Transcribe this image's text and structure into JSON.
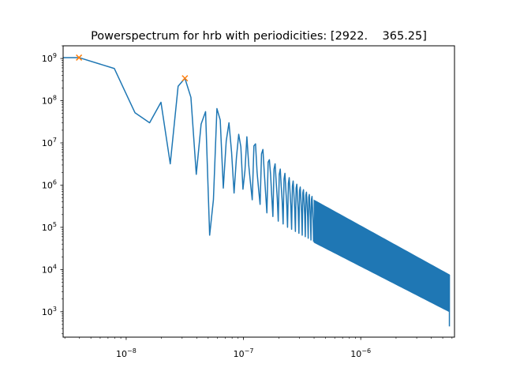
{
  "chart_data": {
    "type": "line",
    "title": "Powerspectrum for hrb with periodicities: [2922.    365.25]",
    "xlabel": "",
    "ylabel": "",
    "x_scale": "log",
    "y_scale": "log",
    "xlim": [
      2.9e-09,
      6.3e-06
    ],
    "ylim": [
      250,
      2000000000.0
    ],
    "x_ticks": [
      {
        "value": 1e-08,
        "base": "10",
        "exp": "−8"
      },
      {
        "value": 1e-07,
        "base": "10",
        "exp": "−7"
      },
      {
        "value": 1e-06,
        "base": "10",
        "exp": "−6"
      }
    ],
    "y_ticks": [
      {
        "value": 1000.0,
        "base": "10",
        "exp": "3"
      },
      {
        "value": 10000.0,
        "base": "10",
        "exp": "4"
      },
      {
        "value": 100000.0,
        "base": "10",
        "exp": "5"
      },
      {
        "value": 1000000.0,
        "base": "10",
        "exp": "6"
      },
      {
        "value": 10000000.0,
        "base": "10",
        "exp": "7"
      },
      {
        "value": 100000000.0,
        "base": "10",
        "exp": "8"
      },
      {
        "value": 1000000000.0,
        "base": "10",
        "exp": "9"
      }
    ],
    "grid": false,
    "legend": "none",
    "series": [
      {
        "color": "#1f77b4",
        "x": [
          2.9e-09,
          3.96e-09,
          7.92e-09,
          1.188e-08,
          1.584e-08,
          1.98e-08,
          2.376e-08,
          2.772e-08,
          3.168e-08,
          3.564e-08,
          3.96e-08,
          4.356e-08,
          4.752e-08,
          5.148e-08,
          5.544e-08,
          5.94e-08,
          6.336e-08,
          6.732e-08,
          7.128e-08,
          7.524e-08,
          7.92e-08,
          8.316e-08,
          8.712e-08,
          9.108e-08,
          9.504e-08,
          9.9e-08,
          1.0296e-07,
          1.0692e-07,
          1.1088e-07,
          1.1484e-07,
          1.188e-07,
          1.2276e-07,
          1.2672e-07,
          1.3068e-07,
          1.3464e-07,
          1.386e-07,
          1.4256e-07,
          1.4652e-07,
          1.5048e-07,
          1.5444e-07,
          1.584e-07,
          1.6236e-07,
          1.6632e-07,
          1.7028e-07,
          1.7424e-07,
          1.782e-07,
          1.8216e-07,
          1.8612e-07,
          1.9008e-07,
          1.9404e-07,
          1.98e-07,
          2.0196e-07,
          2.0592e-07,
          2.0988e-07,
          2.1384e-07,
          2.178e-07,
          2.2176e-07,
          2.2572e-07,
          2.2968e-07,
          2.3364e-07,
          2.376e-07,
          2.4156e-07,
          2.4552e-07,
          2.4948e-07,
          2.5344e-07,
          2.574e-07,
          2.6136e-07,
          2.6532e-07,
          2.6928e-07,
          2.7324e-07,
          2.772e-07,
          2.8116e-07,
          2.8512e-07,
          2.8908e-07,
          2.9304e-07,
          2.97e-07,
          3.0096e-07,
          3.0492e-07,
          3.0888e-07,
          3.1284e-07,
          3.168e-07,
          3.2076e-07,
          3.2472e-07,
          3.2868e-07,
          3.3264e-07,
          3.366e-07,
          3.4056e-07,
          3.4452e-07,
          3.4848e-07,
          3.5244e-07,
          3.564e-07,
          3.6036e-07,
          3.6432e-07,
          3.6828e-07,
          3.7224e-07,
          3.762e-07,
          3.8016e-07,
          3.8412e-07,
          3.8808e-07,
          3.9204e-07,
          3.96e-07
        ],
        "y": [
          1050000000.0,
          1050000000.0,
          580000000.0,
          52000000.0,
          30000000.0,
          92000000.0,
          3200000.0,
          220000000.0,
          340000000.0,
          120000000.0,
          1800000.0,
          28000000.0,
          55000000.0,
          65000.0,
          450000.0,
          65000000.0,
          35000000.0,
          850000.0,
          11000000.0,
          30000000.0,
          6000000.0,
          650000.0,
          4500000.0,
          16000000.0,
          8000000.0,
          800000.0,
          2200000.0,
          14000000.0,
          3000000.0,
          1100000.0,
          450000.0,
          8500000.0,
          9500000.0,
          2000000.0,
          800000.0,
          350000.0,
          5500000.0,
          7000000.0,
          2000000.0,
          650000.0,
          220000.0,
          3500000.0,
          4000000.0,
          1800000.0,
          550000.0,
          180000.0,
          2400000.0,
          3200000.0,
          1200000.0,
          500000.0,
          140000.0,
          1800000.0,
          2400000.0,
          950000.0,
          420000.0,
          120000.0,
          1400000.0,
          1900000.0,
          800000.0,
          360000.0,
          100000.0,
          1100000.0,
          1500000.0,
          680000.0,
          320000.0,
          90000.0,
          950000.0,
          1250000.0,
          600000.0,
          280000.0,
          80000.0,
          850000.0,
          1050000.0,
          520000.0,
          250000.0,
          72000.0,
          750000.0,
          900000.0,
          460000.0,
          220000.0,
          65000.0,
          660000.0,
          780000.0,
          400000.0,
          200000.0,
          60000.0,
          580000.0,
          680000.0,
          360000.0,
          180000.0,
          55000.0,
          520000.0,
          600000.0,
          320000.0,
          160000.0,
          50000.0,
          470000.0,
          540000.0,
          290000.0,
          145000.0,
          46000.0
        ]
      }
    ],
    "band": {
      "color": "#1f77b4",
      "x_start": 4e-07,
      "x_end": 5.7e-06,
      "upper_start": 440000.0,
      "upper_end": 7500.0,
      "lower_start": 44000.0,
      "lower_end": 1000.0,
      "end_spike_y": 450
    },
    "markers": [
      {
        "x": 3.96e-09,
        "y": 1050000000.0,
        "symbol": "x",
        "color": "#ff7f0e"
      },
      {
        "x": 3.168e-08,
        "y": 340000000.0,
        "symbol": "x",
        "color": "#ff7f0e"
      }
    ]
  }
}
